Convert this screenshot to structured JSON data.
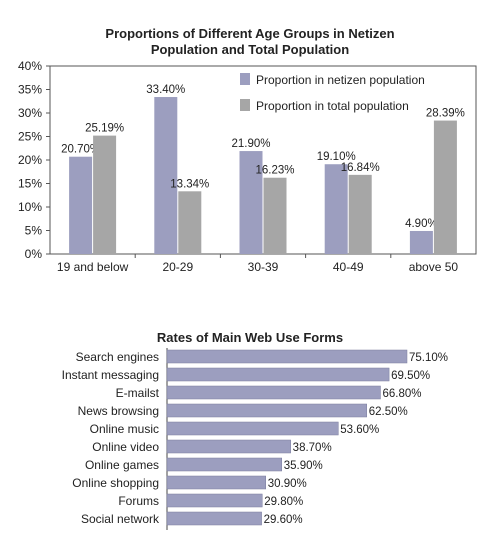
{
  "chart_data": [
    {
      "type": "bar",
      "title_line1": "Proportions of Different Age Groups in Netizen",
      "title_line2": "Population and Total Population",
      "categories": [
        "19 and below",
        "20-29",
        "30-39",
        "40-49",
        "above 50"
      ],
      "series": [
        {
          "name": "Proportion in netizen population",
          "values": [
            20.7,
            33.4,
            21.9,
            19.1,
            4.9
          ],
          "labels": [
            "20.70%",
            "33.40%",
            "21.90%",
            "19.10%",
            "4.90%"
          ],
          "color": "#9c9ebf"
        },
        {
          "name": "Proportion in total population",
          "values": [
            25.19,
            13.34,
            16.23,
            16.84,
            28.39
          ],
          "labels": [
            "25.19%",
            "13.34%",
            "16.23%",
            "16.84%",
            "28.39%"
          ],
          "color": "#a6a6a6"
        }
      ],
      "yticks": [
        "0%",
        "5%",
        "10%",
        "15%",
        "20%",
        "25%",
        "30%",
        "35%",
        "40%"
      ],
      "ylim": [
        0,
        40
      ],
      "legend": "top-right",
      "grid": false
    },
    {
      "type": "bar",
      "orientation": "horizontal",
      "title": "Rates of Main Web Use Forms",
      "categories": [
        "Search engines",
        "Instant messaging",
        "E-mailst",
        "News browsing",
        "Online music",
        "Online video",
        "Online games",
        "Online shopping",
        "Forums",
        "Social network"
      ],
      "values": [
        75.1,
        69.5,
        66.8,
        62.5,
        53.6,
        38.7,
        35.9,
        30.9,
        29.8,
        29.6
      ],
      "labels": [
        "75.10%",
        "69.50%",
        "66.80%",
        "62.50%",
        "53.60%",
        "38.70%",
        "35.90%",
        "30.90%",
        "29.80%",
        "29.60%"
      ],
      "xlim": [
        0,
        100
      ],
      "color": "#9c9ebf"
    }
  ]
}
